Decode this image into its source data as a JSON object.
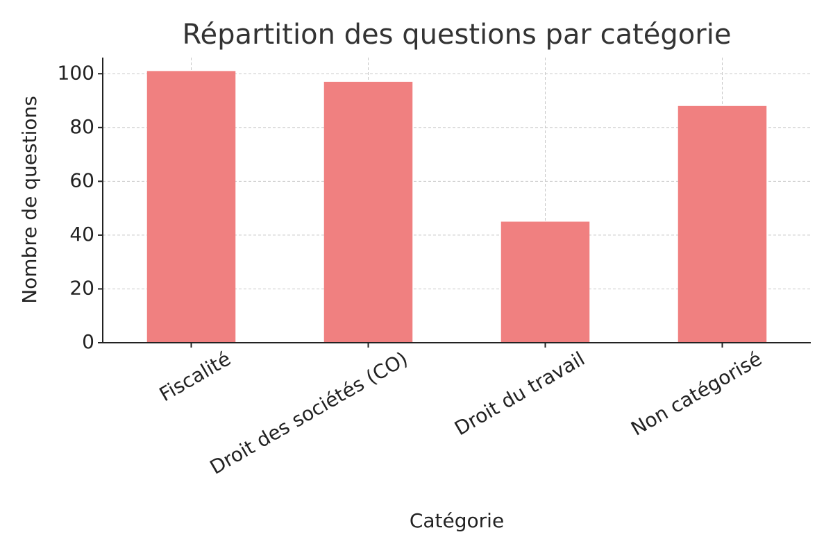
{
  "chart_data": {
    "type": "bar",
    "title": "Répartition des questions par catégorie",
    "x_label": "Catégorie",
    "y_label": "Nombre de questions",
    "categories": [
      "Fiscalité",
      "Droit des sociétés (CO)",
      "Droit du travail",
      "Non catégorisé"
    ],
    "values": [
      101,
      97,
      45,
      88
    ],
    "color": "#f08080",
    "ylim": [
      0,
      106
    ],
    "yticks": [
      0,
      20,
      40,
      60,
      80,
      100
    ],
    "grid": true
  }
}
